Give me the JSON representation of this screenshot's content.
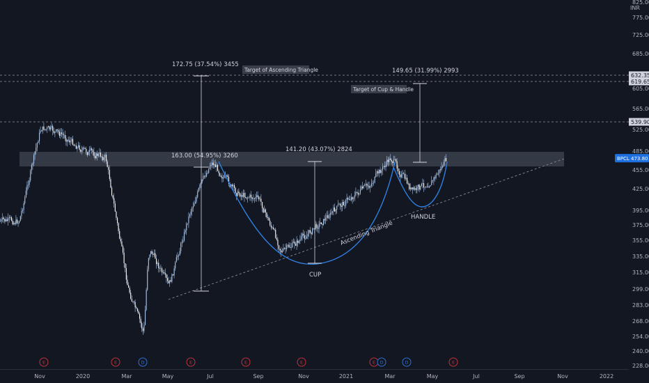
{
  "colors": {
    "background": "#131722",
    "candle": "#a9c5ec",
    "curve": "#2f7fe0",
    "measure": "#d7d9de",
    "zone": "#3b3f4c",
    "trendline": "#8a8d95",
    "earnings": "#c2323a",
    "dividend": "#2f6fd0",
    "price_badge": "#1e6fe0"
  },
  "chart_data": {
    "type": "candlestick",
    "symbol": "BPCL",
    "currency": "INR",
    "last_price": "473.80",
    "x_ticks": [
      "Nov",
      "2020",
      "Mar",
      "May",
      "Jul",
      "Sep",
      "Nov",
      "2021",
      "Mar",
      "May",
      "Jul",
      "Sep",
      "Nov",
      "2022"
    ],
    "y_ticks": [
      "825.00",
      "775.00",
      "725.00",
      "685.00",
      "605.00",
      "565.00",
      "525.00",
      "485.00",
      "455.00",
      "425.00",
      "395.00",
      "375.00",
      "355.00",
      "335.00",
      "315.00",
      "299.00",
      "283.00",
      "268.00",
      "254.00",
      "240.00",
      "228.00"
    ],
    "price_levels": [
      {
        "value": "632.35"
      },
      {
        "value": "619.65"
      },
      {
        "value": "539.90"
      }
    ],
    "price_series_sketch": [
      {
        "date": "2019-10",
        "price": 380
      },
      {
        "date": "2019-11",
        "price": 530
      },
      {
        "date": "2019-12",
        "price": 515
      },
      {
        "date": "2020-01",
        "price": 485
      },
      {
        "date": "2020-02",
        "price": 475
      },
      {
        "date": "2020-03",
        "price": 300
      },
      {
        "date": "2020-03-25",
        "price": 255
      },
      {
        "date": "2020-04",
        "price": 350
      },
      {
        "date": "2020-05",
        "price": 300
      },
      {
        "date": "2020-06",
        "price": 395
      },
      {
        "date": "2020-07",
        "price": 470
      },
      {
        "date": "2020-08",
        "price": 420
      },
      {
        "date": "2020-09",
        "price": 410
      },
      {
        "date": "2020-10",
        "price": 340
      },
      {
        "date": "2020-11",
        "price": 360
      },
      {
        "date": "2020-12",
        "price": 385
      },
      {
        "date": "2021-01",
        "price": 410
      },
      {
        "date": "2021-02",
        "price": 430
      },
      {
        "date": "2021-03",
        "price": 475
      },
      {
        "date": "2021-04",
        "price": 420
      },
      {
        "date": "2021-05",
        "price": 440
      },
      {
        "date": "2021-05-20",
        "price": 473.8
      }
    ],
    "annotations": [
      {
        "text": "172.75 (37.54%) 3455"
      },
      {
        "text": "163.00 (54.95%) 3260"
      },
      {
        "text": "141.20 (43.07%) 2824"
      },
      {
        "text": "149.65 (31.99%) 2993"
      },
      {
        "text": "CUP"
      },
      {
        "text": "HANDLE"
      },
      {
        "text": "Ascending Triangle"
      }
    ],
    "boxed_labels": [
      {
        "text": "Target of Ascending Triangle"
      },
      {
        "text": "Target of Cup & Handle"
      }
    ],
    "event_markers": [
      "E",
      "E",
      "D",
      "E",
      "E",
      "E",
      "E",
      "D",
      "D",
      "E"
    ]
  }
}
